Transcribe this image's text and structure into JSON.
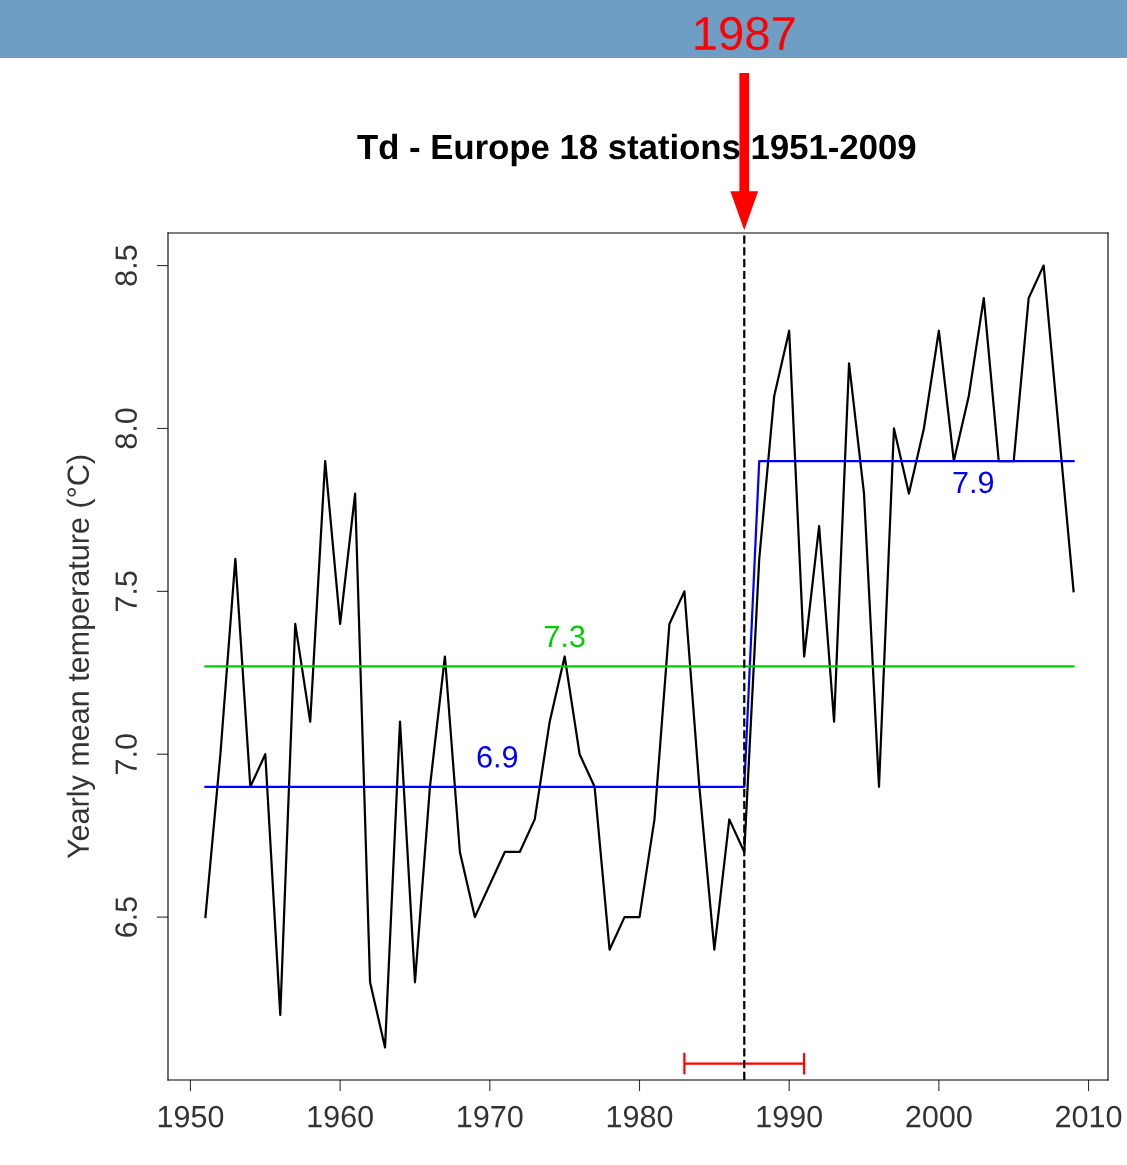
{
  "chart_data": {
    "type": "line",
    "title": "Td - Europe 18 stations 1951-2009",
    "ylabel": "Yearly mean temperature (°C)",
    "xlim": [
      1948.5,
      2011.3
    ],
    "xticks": [
      1950,
      1960,
      1970,
      1980,
      1990,
      2000,
      2010
    ],
    "ylim": [
      6.0,
      8.6
    ],
    "yticks": [
      6.5,
      {
        "value": 7,
        "label": "7.0"
      },
      7.5,
      {
        "value": 8,
        "label": "8.0"
      },
      8.5
    ],
    "grid": false,
    "legend": false,
    "marker": "none",
    "line_style": "solid",
    "series": [
      {
        "color": "#000000",
        "x": [
          1951,
          1952,
          1953,
          1954,
          1955,
          1956,
          1957,
          1958,
          1959,
          1960,
          1961,
          1962,
          1963,
          1964,
          1965,
          1966,
          1967,
          1968,
          1969,
          1970,
          1971,
          1972,
          1973,
          1974,
          1975,
          1976,
          1977,
          1978,
          1979,
          1980,
          1981,
          1982,
          1983,
          1984,
          1985,
          1986,
          1987,
          1988,
          1989,
          1990,
          1991,
          1992,
          1993,
          1994,
          1995,
          1996,
          1997,
          1998,
          1999,
          2000,
          2001,
          2002,
          2003,
          2004,
          2005,
          2006,
          2007,
          2008,
          2009
        ],
        "values": [
          6.5,
          7.0,
          7.6,
          6.9,
          7.0,
          6.2,
          7.4,
          7.1,
          7.9,
          7.4,
          7.8,
          6.3,
          6.1,
          7.1,
          6.3,
          6.9,
          7.3,
          6.7,
          6.5,
          6.6,
          6.7,
          6.7,
          6.8,
          7.1,
          7.3,
          7.0,
          6.9,
          6.4,
          6.5,
          6.5,
          6.8,
          7.4,
          7.5,
          6.9,
          6.4,
          6.8,
          6.7,
          7.6,
          8.1,
          8.3,
          7.3,
          7.7,
          7.1,
          8.2,
          7.8,
          6.9,
          8.0,
          7.8,
          8.0,
          8.3,
          7.9,
          8.1,
          8.4,
          7.9,
          7.9,
          8.4,
          8.5,
          8.0,
          7.5
        ]
      },
      {
        "color": "#0000ff",
        "x": [
          1951,
          1987,
          1988,
          2009
        ],
        "values": [
          6.9,
          6.9,
          7.9,
          7.9
        ]
      },
      {
        "color": "#ff0000",
        "x": [
          1983,
          1983,
          1983,
          1991,
          1991,
          1991
        ],
        "values": [
          6.08,
          6.02,
          6.05,
          6.05,
          6.08,
          6.02
        ]
      }
    ],
    "ref_lines": [
      {
        "axis": "y",
        "value": 7.27,
        "label": "7.3",
        "color": "#00cc00",
        "line_style": "solid"
      },
      {
        "axis": "x",
        "value": 1987,
        "color": "#000000",
        "line_style": "dashed"
      }
    ],
    "annotations": [
      {
        "text": "6.9",
        "x": 1970.5,
        "y": 6.9
      },
      {
        "text": "7.9",
        "x": 2002.3,
        "y": 7.9
      },
      "1987"
    ]
  }
}
